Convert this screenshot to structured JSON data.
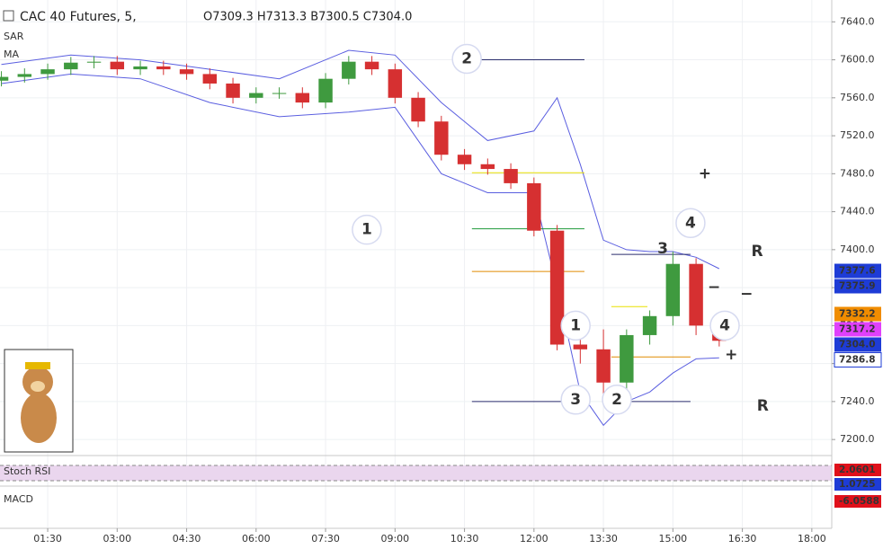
{
  "header": {
    "symbol": "CAC 40 Futures, 5,",
    "ohlc": "O7309.3 H7313.3 B7300.5 C7304.0",
    "indicators": [
      "SAR",
      "MA",
      "Stoch RSI",
      "MACD"
    ]
  },
  "chart_data": {
    "type": "candlestick",
    "up_color": "#3f9a3f",
    "down_color": "#d63031",
    "grid": true,
    "xlim": [
      0.47,
      18.43
    ],
    "ylim": [
      7185,
      7663
    ],
    "xticks": [
      {
        "value": 1.5,
        "label": "01:30"
      },
      {
        "value": 3,
        "label": "03:00"
      },
      {
        "value": 4.5,
        "label": "04:30"
      },
      {
        "value": 6,
        "label": "06:00"
      },
      {
        "value": 7.5,
        "label": "07:30"
      },
      {
        "value": 9,
        "label": "09:00"
      },
      {
        "value": 10.5,
        "label": "10:30"
      },
      {
        "value": 12,
        "label": "12:00"
      },
      {
        "value": 13.5,
        "label": "13:30"
      },
      {
        "value": 15,
        "label": "15:00"
      },
      {
        "value": 16.5,
        "label": "16:30"
      },
      {
        "value": 18,
        "label": "18:00"
      }
    ],
    "yticks": [
      {
        "value": 7200,
        "label": "7200.0"
      },
      {
        "value": 7240,
        "label": "7240.0"
      },
      {
        "value": 7280,
        "label": "7280.0"
      },
      {
        "value": 7320,
        "label": "7320.0"
      },
      {
        "value": 7360,
        "label": "7360.0"
      },
      {
        "value": 7400,
        "label": "7400.0"
      },
      {
        "value": 7440,
        "label": "7440.0"
      },
      {
        "value": 7480,
        "label": "7480.0"
      },
      {
        "value": 7520,
        "label": "7520.0"
      },
      {
        "value": 7560,
        "label": "7560.0"
      },
      {
        "value": 7600,
        "label": "7600.0"
      },
      {
        "value": 7640,
        "label": "7640.0"
      }
    ],
    "x": [
      0.5,
      1,
      1.5,
      2,
      2.5,
      3,
      3.5,
      4,
      4.5,
      5,
      5.5,
      6,
      6.5,
      7,
      7.5,
      8,
      8.5,
      9,
      9.5,
      10,
      10.5,
      11,
      11.5,
      12,
      12.5,
      13,
      13.5,
      14,
      14.5,
      15,
      15.5,
      16
    ],
    "open": [
      7578,
      7582,
      7585,
      7590,
      7597,
      7598,
      7590,
      7593,
      7590,
      7585,
      7575,
      7560,
      7565,
      7565,
      7555,
      7580,
      7598,
      7590,
      7560,
      7535,
      7500,
      7490,
      7485,
      7470,
      7420,
      7300,
      7295,
      7260,
      7310,
      7330,
      7385,
      7320
    ],
    "high": [
      7588,
      7591,
      7596,
      7603,
      7604,
      7604,
      7599,
      7599,
      7596,
      7591,
      7581,
      7571,
      7571,
      7571,
      7586,
      7604,
      7604,
      7596,
      7566,
      7541,
      7506,
      7496,
      7491,
      7476,
      7426,
      7312,
      7316,
      7316,
      7336,
      7398,
      7391,
      7326
    ],
    "low": [
      7572,
      7576,
      7579,
      7584,
      7591,
      7584,
      7584,
      7584,
      7579,
      7569,
      7554,
      7554,
      7559,
      7549,
      7549,
      7574,
      7584,
      7554,
      7529,
      7494,
      7484,
      7479,
      7464,
      7414,
      7294,
      7280,
      7245,
      7250,
      7300,
      7320,
      7310,
      7298
    ],
    "close": [
      7582,
      7585,
      7590,
      7597,
      7598,
      7590,
      7593,
      7590,
      7585,
      7575,
      7560,
      7565,
      7565,
      7555,
      7580,
      7598,
      7590,
      7560,
      7535,
      7500,
      7490,
      7485,
      7470,
      7420,
      7300,
      7295,
      7260,
      7310,
      7330,
      7385,
      7320,
      7304
    ],
    "bands": {
      "color": "#5a5ee0",
      "x": [
        0.5,
        2,
        3.5,
        5,
        6.5,
        8,
        9,
        10,
        11,
        12,
        12.5,
        13,
        13.5,
        14,
        14.5,
        15,
        15.5,
        16
      ],
      "upper": [
        7595,
        7605,
        7600,
        7590,
        7580,
        7610,
        7605,
        7555,
        7515,
        7525,
        7560,
        7490,
        7410,
        7400,
        7398,
        7398,
        7392,
        7380
      ],
      "lower": [
        7575,
        7585,
        7580,
        7555,
        7540,
        7545,
        7550,
        7480,
        7460,
        7460,
        7360,
        7250,
        7215,
        7240,
        7250,
        7270,
        7285,
        7286
      ]
    },
    "levels": [
      {
        "value": 7600,
        "x": [
          10.66,
          13.09
        ],
        "color": "#2a2e6e"
      },
      {
        "value": 7481,
        "x": [
          10.66,
          13.09
        ],
        "color": "#e8e000"
      },
      {
        "value": 7422,
        "x": [
          10.66,
          13.09
        ],
        "color": "#1f9a3a"
      },
      {
        "value": 7377,
        "x": [
          10.66,
          13.09
        ],
        "color": "#e08a00"
      },
      {
        "value": 7240,
        "x": [
          10.66,
          13.09
        ],
        "color": "#2a2e6e"
      },
      {
        "value": 7395,
        "x": [
          13.67,
          15.38
        ],
        "color": "#2a2e6e"
      },
      {
        "value": 7340,
        "x": [
          13.67,
          14.45
        ],
        "color": "#e8e000"
      },
      {
        "value": 7287,
        "x": [
          13.67,
          15.38
        ],
        "color": "#e08a00"
      },
      {
        "value": 7240,
        "x": [
          13.86,
          15.38
        ],
        "color": "#2a2e6e"
      }
    ],
    "annotations": [
      {
        "text": "1",
        "x": 8.39,
        "price": 7421,
        "color": "#2a2e8a",
        "circled": true
      },
      {
        "text": "2",
        "x": 10.55,
        "price": 7601,
        "color": "#2a2e8a",
        "circled": true
      },
      {
        "text": "3",
        "x": 12.9,
        "price": 7242,
        "color": "#2a2e8a",
        "circled": true
      },
      {
        "text": "4",
        "x": 15.38,
        "price": 7428,
        "color": "#2a2e8a",
        "circled": true
      },
      {
        "text": "1",
        "x": 12.9,
        "price": 7320,
        "color": "#e0101a",
        "circled": true
      },
      {
        "text": "2",
        "x": 13.79,
        "price": 7242,
        "color": "#e0101a",
        "circled": true
      },
      {
        "text": "3",
        "x": 14.78,
        "price": 7401,
        "color": "#e0101a",
        "circled": false
      },
      {
        "text": "4",
        "x": 16.12,
        "price": 7320,
        "color": "#e0101a",
        "circled": true
      },
      {
        "text": "R",
        "x": 16.82,
        "price": 7398,
        "color": "#e0101a",
        "circled": false
      },
      {
        "text": "R",
        "x": 16.94,
        "price": 7235,
        "color": "#2a2e8a",
        "circled": false
      },
      {
        "text": "+",
        "x": 15.69,
        "price": 7480,
        "color": "#2a2e8a",
        "circled": false
      },
      {
        "text": "−",
        "x": 15.89,
        "price": 7360,
        "color": "#2a2e8a",
        "circled": false
      },
      {
        "text": "−",
        "x": 16.59,
        "price": 7353,
        "color": "#e0101a",
        "circled": false
      },
      {
        "text": "+",
        "x": 16.26,
        "price": 7289,
        "color": "#e0101a",
        "circled": false
      }
    ],
    "price_tags": [
      {
        "value": 7377.6,
        "color": "#1e3cd6"
      },
      {
        "value": 7375.9,
        "color": "#1e3cd6"
      },
      {
        "value": 7332.2,
        "color": "#f08c00"
      },
      {
        "value": 7317.2,
        "color": "#e040fb"
      },
      {
        "value": 7304,
        "label": "7304.0",
        "color": "#1e3cd6"
      },
      {
        "value": 7286.8,
        "color": "#ffffff"
      }
    ],
    "indicator_tags": [
      {
        "value": 2.0601,
        "color": "#e0101a",
        "pane": "stoch"
      },
      {
        "value": 1.0725,
        "color": "#1e3cd6",
        "pane": "stoch"
      },
      {
        "value": -6.0588,
        "color": "#e0101a",
        "pane": "macd"
      }
    ]
  }
}
